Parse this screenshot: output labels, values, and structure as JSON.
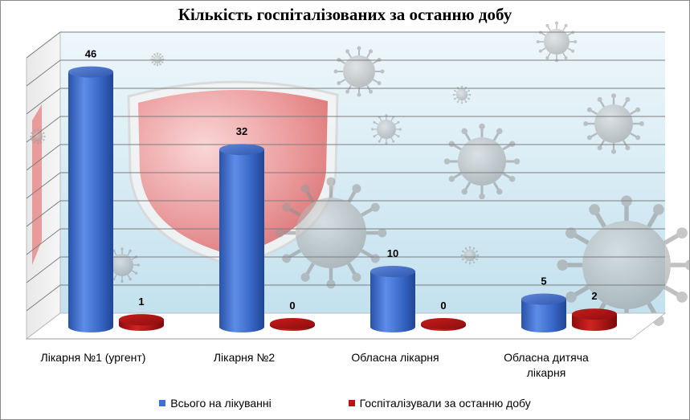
{
  "chart_data": {
    "type": "bar",
    "title": "Кількість госпіталізованих за останню добу",
    "categories": [
      "Лікарня №1 (ургент)",
      "Лікарня №2",
      "Обласна лікарня",
      "Обласна дитяча лікарня"
    ],
    "series": [
      {
        "name": "Всього на лікуванні",
        "values": [
          46,
          32,
          10,
          5
        ],
        "color": "#3f6fd0"
      },
      {
        "name": "Госпіталізували за останню добу",
        "values": [
          1,
          0,
          0,
          2
        ],
        "color": "#b81414"
      }
    ],
    "ylim": [
      0,
      50
    ],
    "grid": true,
    "legend": "bottom",
    "style": "3d-cylinders"
  },
  "colors": {
    "background_top": "#eaf5fa",
    "background_bottom": "#c7e3f0",
    "shield": "#e06060",
    "virus": "#9a9a9a"
  }
}
